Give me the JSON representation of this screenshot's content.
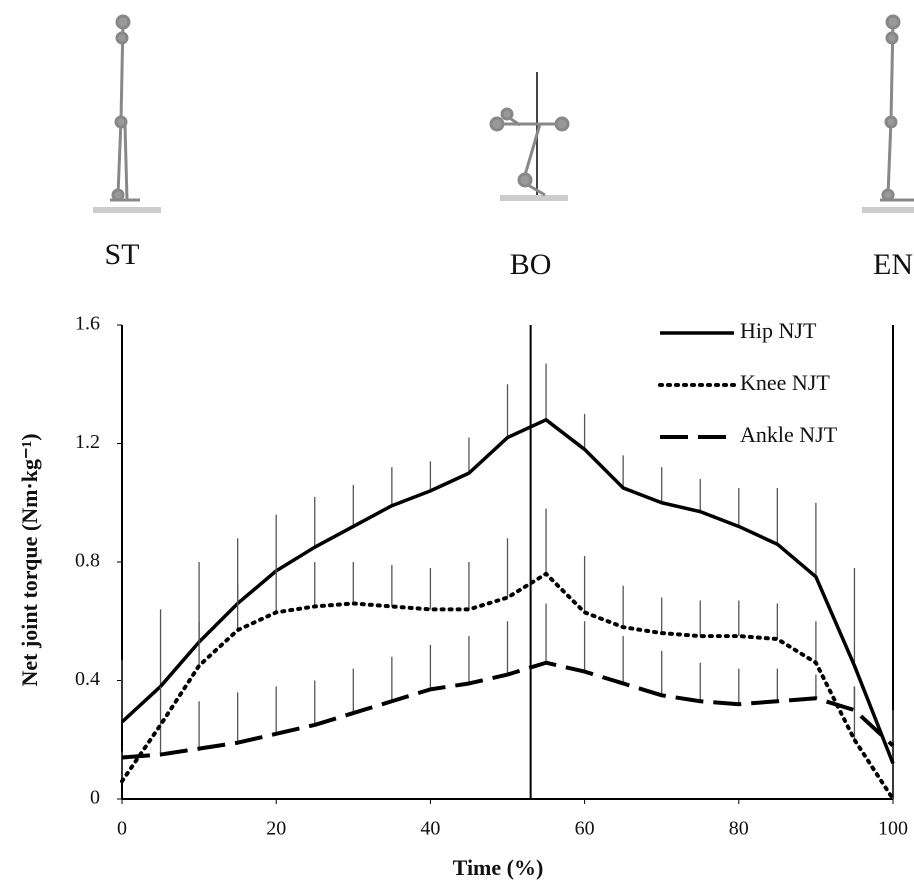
{
  "chart_data": {
    "type": "line",
    "x": [
      0,
      5,
      10,
      15,
      20,
      25,
      30,
      35,
      40,
      45,
      50,
      55,
      60,
      65,
      70,
      75,
      80,
      85,
      90,
      95,
      100
    ],
    "series": [
      {
        "name": "Hip NJT",
        "color": "#000000",
        "dash": "solid",
        "values": [
          0.26,
          0.38,
          0.53,
          0.66,
          0.77,
          0.85,
          0.92,
          0.99,
          1.04,
          1.1,
          1.22,
          1.28,
          1.18,
          1.05,
          1.0,
          0.97,
          0.92,
          0.86,
          0.75,
          0.45,
          0.12
        ],
        "error": [
          0.21,
          0.26,
          0.27,
          0.22,
          0.19,
          0.17,
          0.14,
          0.13,
          0.1,
          0.12,
          0.18,
          0.19,
          0.12,
          0.11,
          0.12,
          0.11,
          0.13,
          0.19,
          0.25,
          0.33,
          0.18
        ]
      },
      {
        "name": "Knee NJT",
        "color": "#000000",
        "dash": "dotted",
        "values": [
          0.06,
          0.25,
          0.45,
          0.57,
          0.63,
          0.65,
          0.66,
          0.65,
          0.64,
          0.64,
          0.68,
          0.76,
          0.63,
          0.58,
          0.56,
          0.55,
          0.55,
          0.54,
          0.46,
          0.2,
          0.0
        ],
        "error": [
          0.09,
          0.13,
          0.15,
          0.15,
          0.15,
          0.15,
          0.14,
          0.14,
          0.14,
          0.16,
          0.2,
          0.22,
          0.19,
          0.14,
          0.12,
          0.12,
          0.12,
          0.12,
          0.14,
          0.18,
          0.12
        ]
      },
      {
        "name": "Ankle NJT",
        "color": "#000000",
        "dash": "dashed",
        "values": [
          0.14,
          0.15,
          0.17,
          0.19,
          0.22,
          0.25,
          0.29,
          0.33,
          0.37,
          0.39,
          0.42,
          0.46,
          0.43,
          0.39,
          0.35,
          0.33,
          0.32,
          0.33,
          0.34,
          0.3,
          0.18
        ],
        "error": [
          0.02,
          0.09,
          0.16,
          0.17,
          0.16,
          0.15,
          0.15,
          0.15,
          0.15,
          0.16,
          0.18,
          0.2,
          0.17,
          0.16,
          0.15,
          0.13,
          0.12,
          0.11,
          0.08,
          0.08,
          0.04
        ]
      }
    ],
    "xlabel": "Time (%)",
    "ylabel": "Net joint torque (Nm·kg⁻¹)",
    "xlim": [
      0,
      100
    ],
    "xticks": [
      0,
      20,
      40,
      60,
      80,
      100
    ],
    "ylim": [
      0,
      1.6
    ],
    "yticks": [
      0,
      0.4,
      0.8,
      1.2,
      1.6
    ],
    "vlines": [
      53,
      100
    ],
    "phase_labels": [
      "ST",
      "BO",
      "EN"
    ],
    "legend": "upper right",
    "grid": false
  }
}
